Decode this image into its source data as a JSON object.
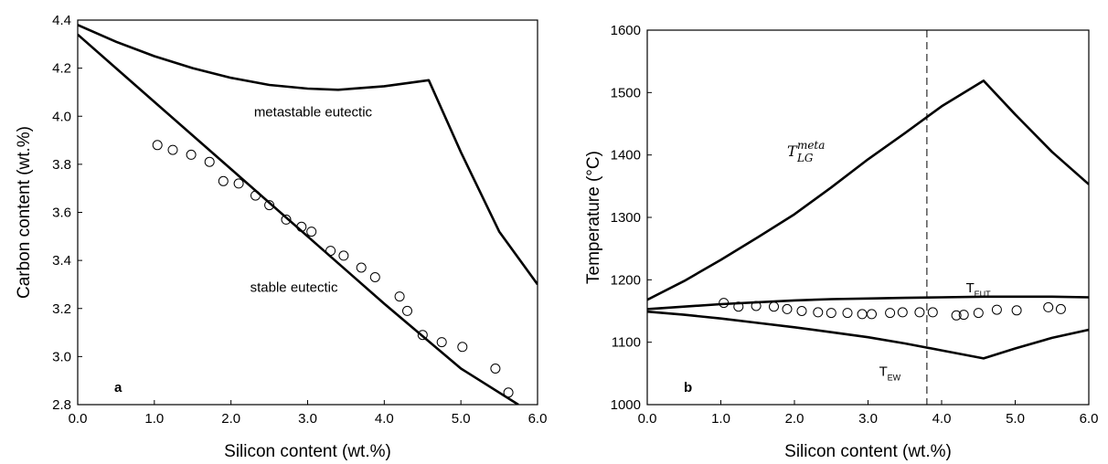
{
  "chart_data": [
    {
      "type": "line",
      "panel_label": "a",
      "xlabel": "Silicon content (wt.%)",
      "ylabel": "Carbon content (wt.%)",
      "xlim": [
        0.0,
        6.0
      ],
      "ylim": [
        2.8,
        4.4
      ],
      "x_ticks": [
        "0.0",
        "1.0",
        "2.0",
        "3.0",
        "4.0",
        "5.0",
        "6.0"
      ],
      "y_ticks": [
        "2.8",
        "3.0",
        "3.2",
        "3.4",
        "3.6",
        "3.8",
        "4.0",
        "4.2",
        "4.4"
      ],
      "grid": false,
      "series": [
        {
          "name": "metastable eutectic",
          "style": "line",
          "color": "#000000",
          "points": [
            [
              0.0,
              4.38
            ],
            [
              0.5,
              4.31
            ],
            [
              1.0,
              4.25
            ],
            [
              1.5,
              4.2
            ],
            [
              2.0,
              4.16
            ],
            [
              2.5,
              4.13
            ],
            [
              3.0,
              4.115
            ],
            [
              3.4,
              4.11
            ],
            [
              4.0,
              4.125
            ],
            [
              4.58,
              4.15
            ],
            [
              5.0,
              3.85
            ],
            [
              5.5,
              3.52
            ],
            [
              6.0,
              3.3
            ]
          ]
        },
        {
          "name": "stable eutectic",
          "style": "line",
          "color": "#000000",
          "points": [
            [
              0.0,
              4.34
            ],
            [
              1.0,
              4.06
            ],
            [
              2.0,
              3.78
            ],
            [
              3.0,
              3.5
            ],
            [
              4.0,
              3.22
            ],
            [
              5.0,
              2.95
            ],
            [
              5.75,
              2.8
            ]
          ]
        },
        {
          "name": "",
          "style": "scatter",
          "marker": "open-circle",
          "points": [
            [
              1.04,
              3.88
            ],
            [
              1.24,
              3.86
            ],
            [
              1.48,
              3.84
            ],
            [
              1.72,
              3.81
            ],
            [
              1.9,
              3.73
            ],
            [
              2.1,
              3.72
            ],
            [
              2.32,
              3.67
            ],
            [
              2.5,
              3.63
            ],
            [
              2.72,
              3.57
            ],
            [
              2.92,
              3.54
            ],
            [
              3.05,
              3.52
            ],
            [
              3.3,
              3.44
            ],
            [
              3.47,
              3.42
            ],
            [
              3.7,
              3.37
            ],
            [
              3.88,
              3.33
            ],
            [
              4.2,
              3.25
            ],
            [
              4.3,
              3.19
            ],
            [
              4.5,
              3.09
            ],
            [
              4.75,
              3.06
            ],
            [
              5.02,
              3.04
            ],
            [
              5.45,
              2.95
            ],
            [
              5.62,
              2.85
            ]
          ]
        }
      ],
      "annotations": [
        {
          "text": "metastable eutectic",
          "x": 2.3,
          "y": 4.0
        },
        {
          "text": "stable eutectic",
          "x": 2.25,
          "y": 3.27
        }
      ]
    },
    {
      "type": "line",
      "panel_label": "b",
      "xlabel": "Silicon content (wt.%)",
      "ylabel": "Temperature (°C)",
      "xlim": [
        0.0,
        6.0
      ],
      "ylim": [
        1000,
        1600
      ],
      "x_ticks": [
        "0.0",
        "1.0",
        "2.0",
        "3.0",
        "4.0",
        "5.0",
        "6.0"
      ],
      "y_ticks": [
        "1000",
        "1100",
        "1200",
        "1300",
        "1400",
        "1500",
        "1600"
      ],
      "grid": false,
      "series": [
        {
          "name": "T_LG^meta",
          "style": "line",
          "color": "#000000",
          "points": [
            [
              0.0,
              1168
            ],
            [
              0.5,
              1198
            ],
            [
              1.0,
              1232
            ],
            [
              1.5,
              1268
            ],
            [
              2.0,
              1305
            ],
            [
              2.5,
              1348
            ],
            [
              3.0,
              1393
            ],
            [
              3.5,
              1435
            ],
            [
              4.0,
              1478
            ],
            [
              4.57,
              1519
            ],
            [
              5.0,
              1465
            ],
            [
              5.5,
              1405
            ],
            [
              6.0,
              1353
            ]
          ]
        },
        {
          "name": "T_EUT",
          "style": "line",
          "color": "#000000",
          "points": [
            [
              0.0,
              1153
            ],
            [
              0.5,
              1157
            ],
            [
              1.0,
              1161
            ],
            [
              1.5,
              1164
            ],
            [
              2.0,
              1167
            ],
            [
              2.5,
              1169
            ],
            [
              3.0,
              1170
            ],
            [
              3.5,
              1171
            ],
            [
              4.0,
              1172
            ],
            [
              4.57,
              1173
            ],
            [
              5.0,
              1173
            ],
            [
              5.5,
              1173
            ],
            [
              6.0,
              1172
            ]
          ]
        },
        {
          "name": "T_EW",
          "style": "line",
          "color": "#000000",
          "points": [
            [
              0.0,
              1149
            ],
            [
              0.5,
              1144
            ],
            [
              1.0,
              1138
            ],
            [
              1.5,
              1131
            ],
            [
              2.0,
              1124
            ],
            [
              2.5,
              1116
            ],
            [
              3.0,
              1108
            ],
            [
              3.5,
              1098
            ],
            [
              4.0,
              1087
            ],
            [
              4.57,
              1074
            ],
            [
              5.0,
              1090
            ],
            [
              5.5,
              1107
            ],
            [
              6.0,
              1120
            ]
          ]
        },
        {
          "name": "",
          "style": "scatter",
          "marker": "open-circle",
          "points": [
            [
              1.04,
              1163
            ],
            [
              1.24,
              1157
            ],
            [
              1.48,
              1158
            ],
            [
              1.72,
              1157
            ],
            [
              1.9,
              1153
            ],
            [
              2.1,
              1150
            ],
            [
              2.32,
              1148
            ],
            [
              2.5,
              1147
            ],
            [
              2.72,
              1147
            ],
            [
              2.92,
              1145
            ],
            [
              3.05,
              1145
            ],
            [
              3.3,
              1147
            ],
            [
              3.47,
              1148
            ],
            [
              3.7,
              1148
            ],
            [
              3.88,
              1148
            ],
            [
              4.2,
              1143
            ],
            [
              4.3,
              1144
            ],
            [
              4.5,
              1147
            ],
            [
              4.75,
              1152
            ],
            [
              5.02,
              1151
            ],
            [
              5.45,
              1156
            ],
            [
              5.62,
              1153
            ]
          ]
        }
      ],
      "vline": {
        "x": 3.8,
        "style": "dashed"
      },
      "annotations": [
        {
          "text": "T",
          "sup": "meta",
          "sub": "LG",
          "x": 1.9,
          "y": 1398
        },
        {
          "text": "T",
          "sub": "EUT",
          "x": 4.33,
          "y": 1180
        },
        {
          "text": "T",
          "sub": "EW",
          "x": 3.15,
          "y": 1046
        }
      ]
    }
  ]
}
